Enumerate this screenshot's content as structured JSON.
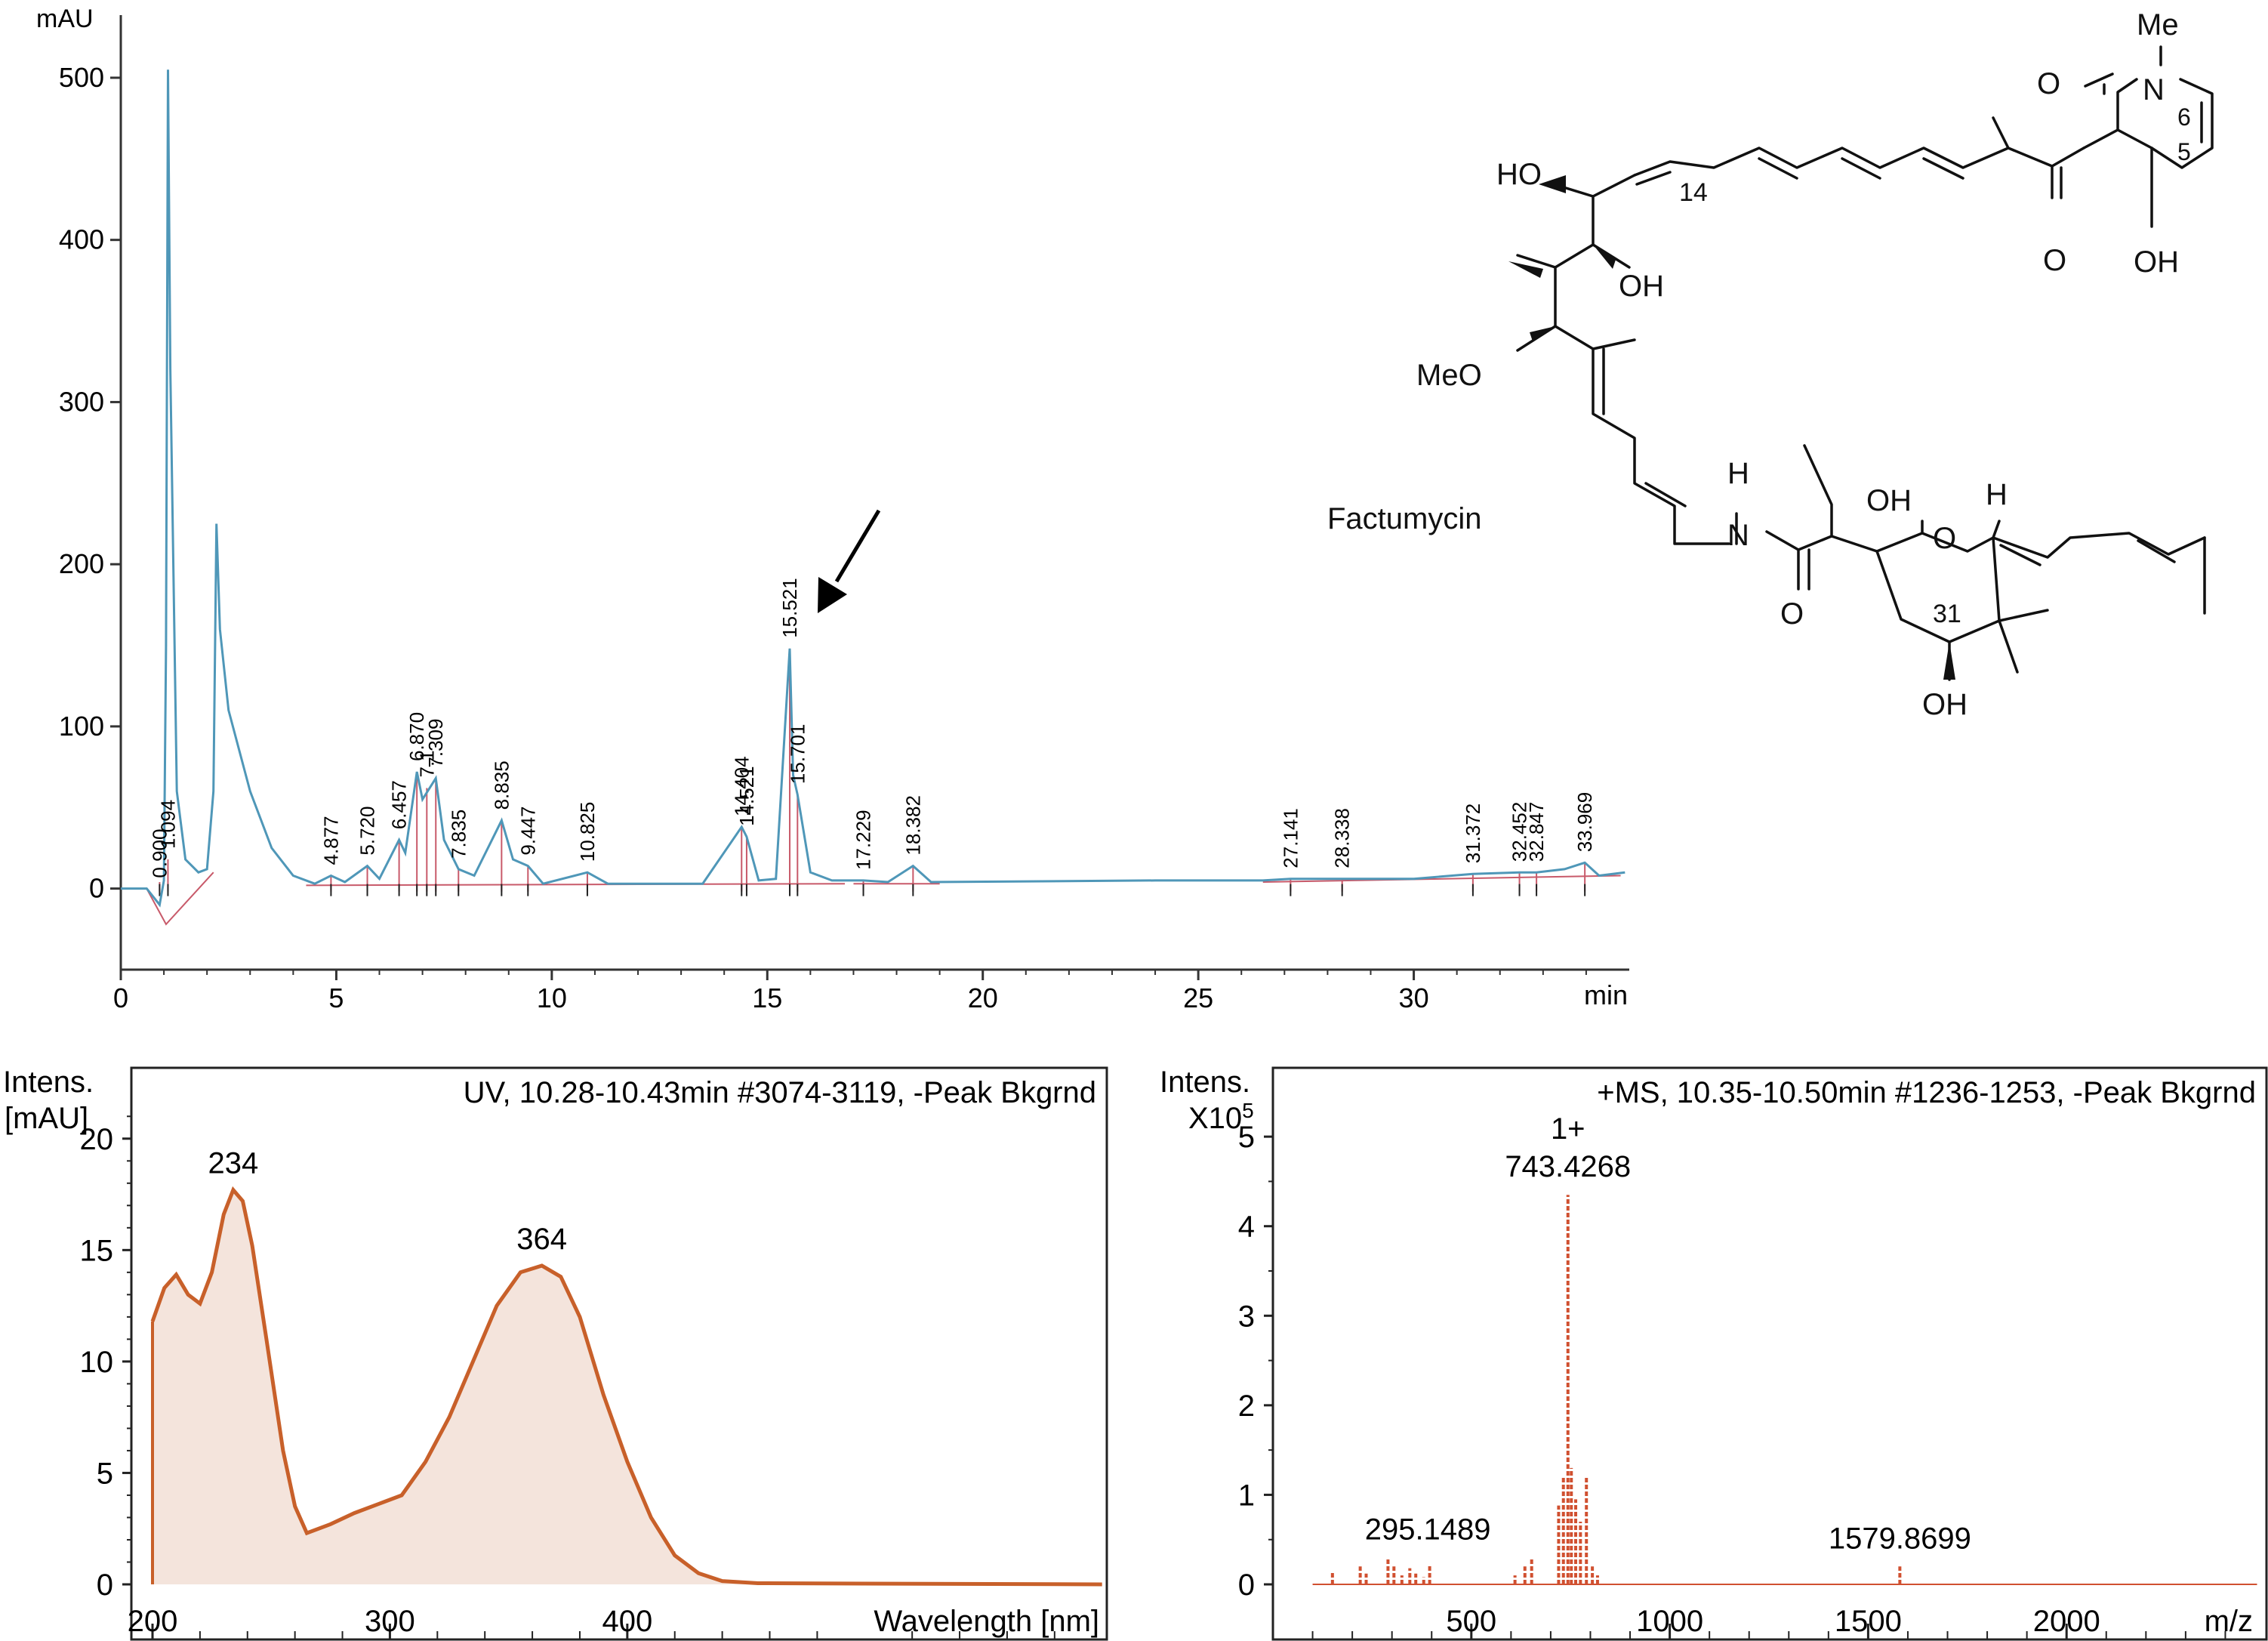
{
  "chart_data": [
    {
      "type": "line",
      "ylabel": "mAU",
      "xlabel": "min",
      "xlim": [
        0,
        35
      ],
      "ylim": [
        -50,
        520
      ],
      "x_ticks": [
        "0",
        "5",
        "10",
        "15",
        "20",
        "25",
        "30"
      ],
      "y_ticks": [
        "0",
        "100",
        "200",
        "300",
        "400",
        "500"
      ],
      "series": [
        {
          "color": "#4f97b8",
          "points": [
            [
              0.0,
              0
            ],
            [
              0.6,
              0
            ],
            [
              0.9,
              -10
            ],
            [
              1.0,
              5
            ],
            [
              1.05,
              150
            ],
            [
              1.094,
              505
            ],
            [
              1.15,
              320
            ],
            [
              1.3,
              60
            ],
            [
              1.5,
              18
            ],
            [
              1.8,
              10
            ],
            [
              2.0,
              12
            ],
            [
              2.15,
              60
            ],
            [
              2.22,
              225
            ],
            [
              2.3,
              160
            ],
            [
              2.5,
              110
            ],
            [
              3.0,
              60
            ],
            [
              3.5,
              25
            ],
            [
              4.0,
              8
            ],
            [
              4.5,
              3
            ],
            [
              4.877,
              8
            ],
            [
              5.2,
              4
            ],
            [
              5.72,
              14
            ],
            [
              6.0,
              6
            ],
            [
              6.457,
              30
            ],
            [
              6.6,
              22
            ],
            [
              6.87,
              72
            ],
            [
              7.0,
              55
            ],
            [
              7.309,
              68
            ],
            [
              7.5,
              30
            ],
            [
              7.835,
              12
            ],
            [
              8.2,
              8
            ],
            [
              8.835,
              42
            ],
            [
              9.1,
              18
            ],
            [
              9.447,
              14
            ],
            [
              9.8,
              3
            ],
            [
              10.825,
              10
            ],
            [
              11.3,
              3
            ],
            [
              13.5,
              3
            ],
            [
              14.404,
              38
            ],
            [
              14.521,
              32
            ],
            [
              14.8,
              5
            ],
            [
              15.2,
              6
            ],
            [
              15.521,
              148
            ],
            [
              15.6,
              70
            ],
            [
              15.701,
              58
            ],
            [
              16.0,
              10
            ],
            [
              16.5,
              5
            ],
            [
              17.229,
              5
            ],
            [
              17.8,
              4
            ],
            [
              18.382,
              14
            ],
            [
              18.8,
              4
            ],
            [
              24.0,
              5
            ],
            [
              26.5,
              5
            ],
            [
              27.141,
              6
            ],
            [
              28.338,
              6
            ],
            [
              30.0,
              6
            ],
            [
              31.372,
              9
            ],
            [
              32.452,
              10
            ],
            [
              32.847,
              10
            ],
            [
              33.5,
              12
            ],
            [
              33.969,
              16
            ],
            [
              34.3,
              8
            ],
            [
              34.9,
              10
            ]
          ]
        }
      ],
      "peak_labels": [
        "0.900",
        "1.094",
        "4.877",
        "5.720",
        "6.457",
        "6.870",
        "7.1",
        "7.309",
        "7.835",
        "8.835",
        "9.447",
        "10.825",
        "14.404",
        "14.521",
        "15.521",
        "15.701",
        "17.229",
        "18.382",
        "27.141",
        "28.338",
        "31.372",
        "32.452",
        "32.847",
        "33.969"
      ],
      "peak_times": [
        0.9,
        1.094,
        4.877,
        5.72,
        6.457,
        6.87,
        7.1,
        7.309,
        7.835,
        8.835,
        9.447,
        10.825,
        14.404,
        14.521,
        15.521,
        15.701,
        17.229,
        18.382,
        27.141,
        28.338,
        31.372,
        32.452,
        32.847,
        33.969
      ],
      "peak_heights": [
        -5,
        18,
        8,
        14,
        30,
        72,
        62,
        68,
        12,
        42,
        14,
        10,
        38,
        32,
        148,
        58,
        5,
        14,
        6,
        6,
        9,
        10,
        10,
        16
      ],
      "arrow_target_time": 15.521
    },
    {
      "type": "area",
      "title": "UV, 10.28-10.43min #3074-3119, -Peak Bkgrnd",
      "ylabel_lines": [
        "Intens.",
        "[mAU]"
      ],
      "xlabel": "Wavelength [nm]",
      "xlim": [
        200,
        602
      ],
      "ylim": [
        0,
        22.5
      ],
      "x_ticks": [
        "200",
        "300",
        "400"
      ],
      "y_ticks": [
        "0",
        "5",
        "10",
        "15",
        "20"
      ],
      "series": [
        {
          "color": "#c8602a",
          "fill": "#f4e4dc",
          "points": [
            [
              200,
              11.8
            ],
            [
              205,
              13.3
            ],
            [
              210,
              13.9
            ],
            [
              215,
              13.0
            ],
            [
              220,
              12.6
            ],
            [
              225,
              14.0
            ],
            [
              230,
              16.6
            ],
            [
              234,
              17.7
            ],
            [
              238,
              17.2
            ],
            [
              242,
              15.2
            ],
            [
              248,
              11.0
            ],
            [
              255,
              6.0
            ],
            [
              260,
              3.5
            ],
            [
              265,
              2.3
            ],
            [
              275,
              2.7
            ],
            [
              285,
              3.2
            ],
            [
              295,
              3.6
            ],
            [
              305,
              4.0
            ],
            [
              315,
              5.5
            ],
            [
              325,
              7.5
            ],
            [
              335,
              10.0
            ],
            [
              345,
              12.5
            ],
            [
              355,
              14.0
            ],
            [
              364,
              14.3
            ],
            [
              372,
              13.8
            ],
            [
              380,
              12.0
            ],
            [
              390,
              8.5
            ],
            [
              400,
              5.5
            ],
            [
              410,
              3.0
            ],
            [
              420,
              1.3
            ],
            [
              430,
              0.5
            ],
            [
              440,
              0.15
            ],
            [
              455,
              0.05
            ],
            [
              600,
              0.0
            ]
          ]
        }
      ],
      "annotations": [
        {
          "x": 234,
          "y": 17.7,
          "text": "234"
        },
        {
          "x": 364,
          "y": 14.3,
          "text": "364"
        }
      ]
    },
    {
      "type": "bar",
      "title": "+MS, 10.35-10.50min #1236-1253, -Peak Bkgrnd",
      "ylabel": "Intens.",
      "yscale_label": "X10",
      "yscale_exp": "5",
      "xlabel": "m/z",
      "xlim": [
        0,
        2500
      ],
      "ylim": [
        0,
        5.6
      ],
      "x_ticks": [
        "500",
        "1000",
        "1500",
        "2000"
      ],
      "y_ticks": [
        "0",
        "1",
        "2",
        "3",
        "4",
        "5"
      ],
      "color": "#d05030",
      "peaks": [
        [
          150,
          0.15
        ],
        [
          220,
          0.2
        ],
        [
          235,
          0.12
        ],
        [
          290,
          0.3
        ],
        [
          305,
          0.2
        ],
        [
          325,
          0.1
        ],
        [
          345,
          0.18
        ],
        [
          360,
          0.12
        ],
        [
          380,
          0.08
        ],
        [
          395,
          0.22
        ],
        [
          610,
          0.1
        ],
        [
          635,
          0.2
        ],
        [
          652,
          0.28
        ],
        [
          720,
          0.88
        ],
        [
          732,
          1.2
        ],
        [
          743.4268,
          4.35
        ],
        [
          752,
          1.3
        ],
        [
          763,
          0.95
        ],
        [
          775,
          0.7
        ],
        [
          790,
          1.2
        ],
        [
          805,
          0.2
        ],
        [
          818,
          0.1
        ],
        [
          1579.8699,
          0.2
        ]
      ],
      "annotations": [
        {
          "x": 295.1489,
          "y": 0.3,
          "text": "295.1489"
        },
        {
          "x": 743.4268,
          "y": 4.35,
          "text": "743.4268",
          "charge": "1+"
        },
        {
          "x": 1579.8699,
          "y": 0.2,
          "text": "1579.8699"
        }
      ]
    }
  ],
  "structure": {
    "compound_name": "Factumycin",
    "atom_labels": {
      "me": "Me",
      "o_top": "O",
      "n_top": "N",
      "c6": "6",
      "c5": "5",
      "ho": "HO",
      "c14": "14",
      "o_keto": "O",
      "oh_ring": "OH",
      "oh_mid": "OH",
      "meo": "MeO",
      "h_nh": "H",
      "n_amide": "N",
      "o_amide": "O",
      "oh_hemiketal": "OH",
      "o_pyran": "O",
      "h_pyran": "H",
      "c31": "31",
      "oh_bottom": "OH"
    }
  }
}
